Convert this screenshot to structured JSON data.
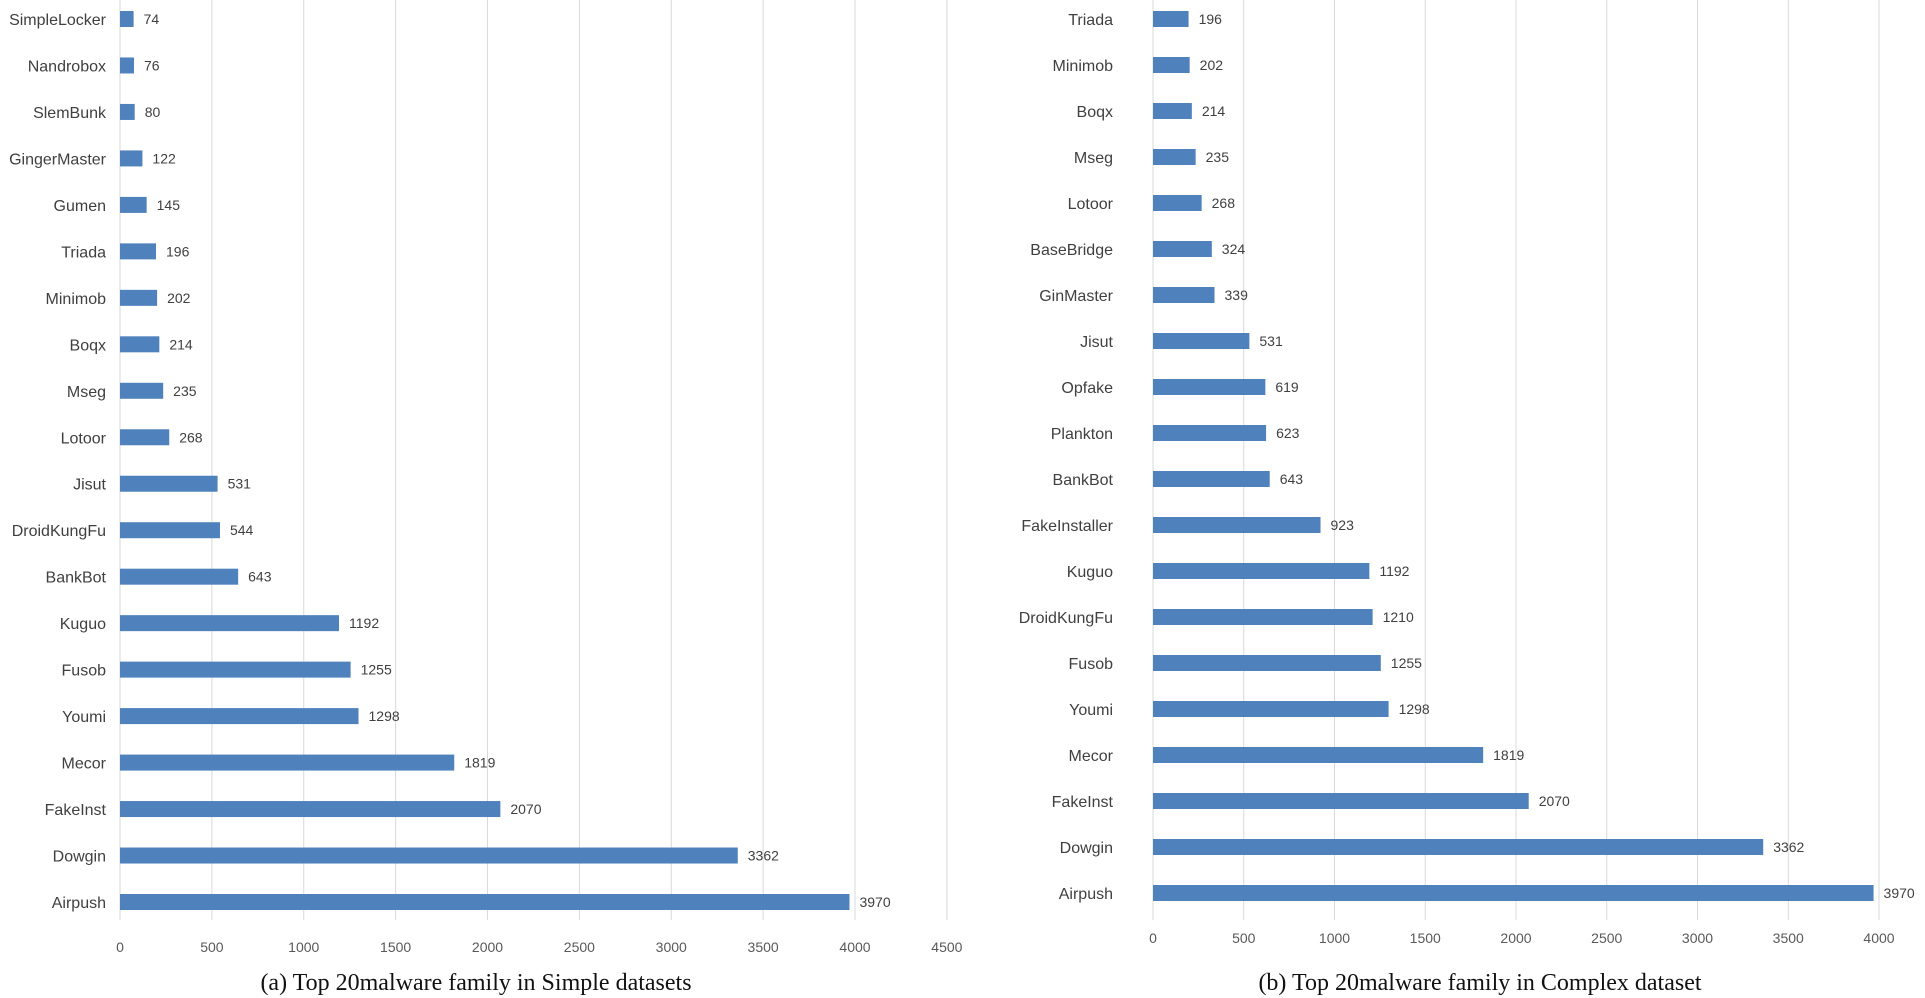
{
  "figure": {
    "captions": [
      "(a) Top 20malware family in Simple datasets",
      "(b) Top 20malware family in Complex dataset"
    ]
  },
  "colors": {
    "bar": "#4f81bd",
    "grid": "#d9d9d9",
    "text": "#404040"
  },
  "chart_data": [
    {
      "type": "bar",
      "orientation": "horizontal",
      "title": "(a) Top 20malware family in Simple datasets",
      "xlabel": "",
      "ylabel": "",
      "xlim": [
        0,
        4500
      ],
      "xticks": [
        0,
        500,
        1000,
        1500,
        2000,
        2500,
        3000,
        3500,
        4000,
        4500
      ],
      "grid": true,
      "categories": [
        "SimpleLocker",
        "Nandrobox",
        "SlemBunk",
        "GingerMaster",
        "Gumen",
        "Triada",
        "Minimob",
        "Boqx",
        "Mseg",
        "Lotoor",
        "Jisut",
        "DroidKungFu",
        "BankBot",
        "Kuguo",
        "Fusob",
        "Youmi",
        "Mecor",
        "FakeInst",
        "Dowgin",
        "Airpush"
      ],
      "values": [
        74,
        76,
        80,
        122,
        145,
        196,
        202,
        214,
        235,
        268,
        531,
        544,
        643,
        1192,
        1255,
        1298,
        1819,
        2070,
        3362,
        3970
      ]
    },
    {
      "type": "bar",
      "orientation": "horizontal",
      "title": "(b) Top 20malware family in Complex dataset",
      "xlabel": "",
      "ylabel": "",
      "xlim": [
        0,
        4000
      ],
      "xticks": [
        0,
        500,
        1000,
        1500,
        2000,
        2500,
        3000,
        3500,
        4000
      ],
      "grid": true,
      "categories": [
        "Triada",
        "Minimob",
        "Boqx",
        "Mseg",
        "Lotoor",
        "BaseBridge",
        "GinMaster",
        "Jisut",
        "Opfake",
        "Plankton",
        "BankBot",
        "FakeInstaller",
        "Kuguo",
        "DroidKungFu",
        "Fusob",
        "Youmi",
        "Mecor",
        "FakeInst",
        "Dowgin",
        "Airpush"
      ],
      "values": [
        196,
        202,
        214,
        235,
        268,
        324,
        339,
        531,
        619,
        623,
        643,
        923,
        1192,
        1210,
        1255,
        1298,
        1819,
        2070,
        3362,
        3970
      ]
    }
  ]
}
